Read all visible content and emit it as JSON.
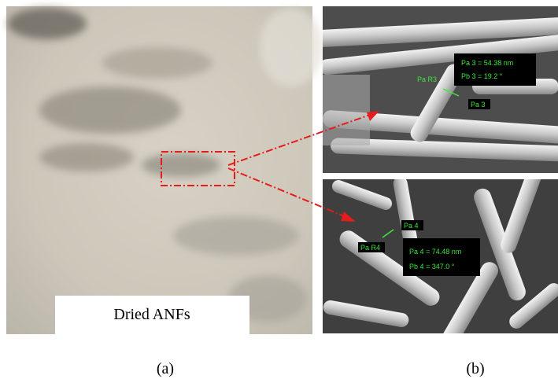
{
  "panels": [
    {
      "label": "(a)",
      "caption": "Dried ANFs"
    },
    {
      "label": "(b)",
      "images": [
        {
          "annotations": [
            "Pa R3",
            "Pa 3 = 54.38 nm",
            "Pb 3 = 19.2 °",
            "Pa 3"
          ]
        },
        {
          "annotations": [
            "Pa 4",
            "Pa R4",
            "Pa 4 = 74.48 nm",
            "Pb 4 = 347.0 °"
          ]
        }
      ]
    }
  ]
}
